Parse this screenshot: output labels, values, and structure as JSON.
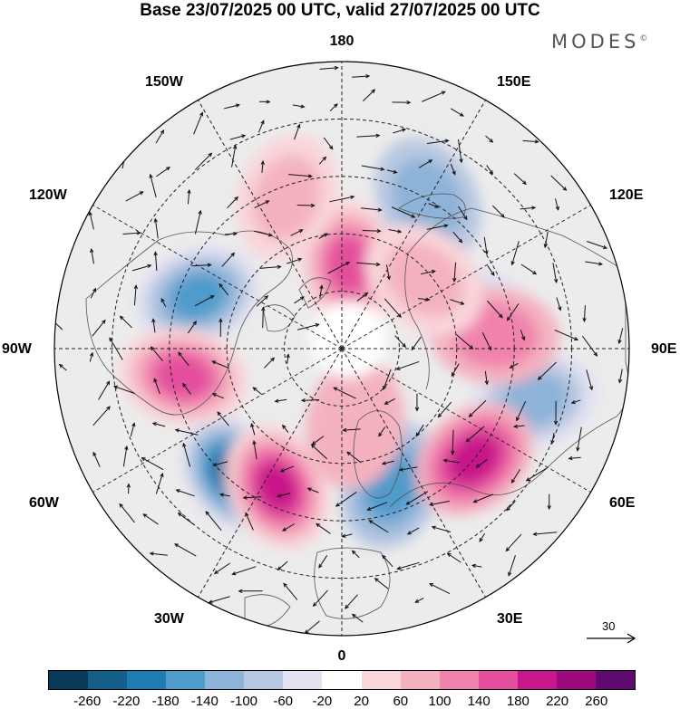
{
  "title": "Base 23/07/2025 00 UTC, valid 27/07/2025 00 UTC",
  "brand": {
    "text": "MODES",
    "mark": "©"
  },
  "longitude_labels": {
    "top": "180",
    "upper_left": "150W",
    "upper_right": "150E",
    "mid_left_upper": "120W",
    "mid_right_upper": "120E",
    "left": "90W",
    "right": "90E",
    "lower_left_mid": "60W",
    "lower_right_mid": "60E",
    "lower_left": "30W",
    "lower_right": "30E",
    "bottom": "0"
  },
  "reference_vector": {
    "value": "30"
  },
  "colorbar": {
    "colors": [
      "#0a3a5a",
      "#135f8a",
      "#1f7cb0",
      "#4f9bcb",
      "#8db3d8",
      "#b9c8e2",
      "#e2e2f2",
      "#ffffff",
      "#f9d6da",
      "#f4b2c0",
      "#f083ad",
      "#e4509d",
      "#c8178a",
      "#9c0a7e",
      "#5e0a6e"
    ],
    "tick_labels": [
      "-260",
      "-220",
      "-180",
      "-140",
      "-100",
      "-60",
      "-20",
      "20",
      "60",
      "100",
      "140",
      "180",
      "220",
      "260"
    ]
  },
  "anomaly_features": [
    {
      "sign": "negative",
      "strength": 220,
      "lon": -40,
      "lat": 47
    },
    {
      "sign": "negative",
      "strength": 140,
      "lon": -110,
      "lat": 50
    },
    {
      "sign": "negative",
      "strength": 120,
      "lon": 20,
      "lat": 52
    },
    {
      "sign": "negative",
      "strength": 100,
      "lon": 75,
      "lat": 38
    },
    {
      "sign": "negative",
      "strength": 80,
      "lon": 150,
      "lat": 45
    },
    {
      "sign": "negative",
      "strength": 60,
      "lon": 105,
      "lat": 55
    },
    {
      "sign": "positive",
      "strength": 180,
      "lon": -25,
      "lat": 50
    },
    {
      "sign": "positive",
      "strength": 160,
      "lon": 50,
      "lat": 45
    },
    {
      "sign": "positive",
      "strength": 140,
      "lon": -80,
      "lat": 48
    },
    {
      "sign": "positive",
      "strength": 140,
      "lon": 175,
      "lat": 68
    },
    {
      "sign": "positive",
      "strength": 80,
      "lon": 95,
      "lat": 50
    },
    {
      "sign": "positive",
      "strength": 60,
      "lon": -160,
      "lat": 48
    },
    {
      "sign": "positive",
      "strength": 60,
      "lon": 130,
      "lat": 62
    },
    {
      "sign": "positive",
      "strength": 40,
      "lon": 10,
      "lat": 70
    }
  ]
}
